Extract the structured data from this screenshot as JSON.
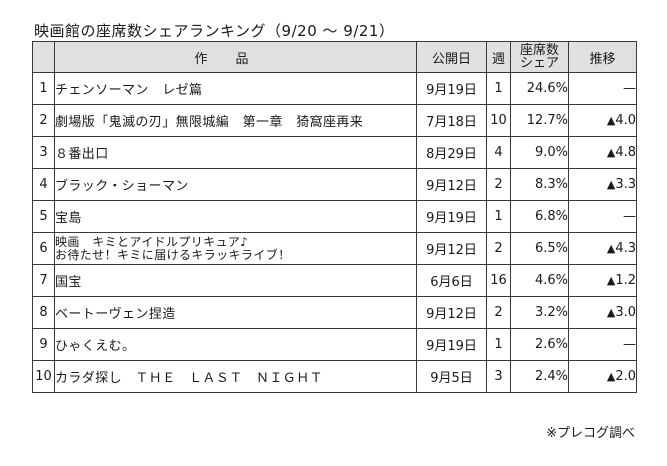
{
  "title": "映画館の座席数シェアランキング（9/20 ～ 9/21）",
  "headers": {
    "rank": "",
    "title": "作品",
    "release": "公開日",
    "weeks": "週",
    "share_line1": "座席数",
    "share_line2": "シェア",
    "trend": "推移"
  },
  "rows": [
    {
      "rank": "1",
      "title": "チェンソーマン　レゼ篇",
      "release": "9月19日",
      "weeks": "1",
      "share": "24.6%",
      "trend_arrow": "",
      "trend_value": "—"
    },
    {
      "rank": "2",
      "title": "劇場版「鬼滅の刃」無限城編　第一章　猗窩座再来",
      "release": "7月18日",
      "weeks": "10",
      "share": "12.7%",
      "trend_arrow": "▲",
      "trend_value": "4.0"
    },
    {
      "rank": "3",
      "title": "８番出口",
      "release": "8月29日",
      "weeks": "4",
      "share": "9.0%",
      "trend_arrow": "▲",
      "trend_value": "4.8"
    },
    {
      "rank": "4",
      "title": "ブラック・ショーマン",
      "release": "9月12日",
      "weeks": "2",
      "share": "8.3%",
      "trend_arrow": "▲",
      "trend_value": "3.3"
    },
    {
      "rank": "5",
      "title": "宝島",
      "release": "9月19日",
      "weeks": "1",
      "share": "6.8%",
      "trend_arrow": "",
      "trend_value": "—"
    },
    {
      "rank": "6",
      "title": "映画　キミとアイドルプリキュア♪",
      "title_line2": "お待たせ！キミに届けるキラッキライブ！",
      "release": "9月12日",
      "weeks": "2",
      "share": "6.5%",
      "trend_arrow": "▲",
      "trend_value": "4.3"
    },
    {
      "rank": "7",
      "title": "国宝",
      "release": "6月6日",
      "weeks": "16",
      "share": "4.6%",
      "trend_arrow": "▲",
      "trend_value": "1.2"
    },
    {
      "rank": "8",
      "title": "ベートーヴェン捏造",
      "release": "9月12日",
      "weeks": "2",
      "share": "3.2%",
      "trend_arrow": "▲",
      "trend_value": "3.0"
    },
    {
      "rank": "9",
      "title": "ひゃくえむ。",
      "release": "9月19日",
      "weeks": "1",
      "share": "2.6%",
      "trend_arrow": "",
      "trend_value": "—"
    },
    {
      "rank": "10",
      "title": "カラダ探し　ＴＨＥ　ＬＡＳＴ　ＮＩＧＨＴ",
      "release": "9月5日",
      "weeks": "3",
      "share": "2.4%",
      "trend_arrow": "▲",
      "trend_value": "2.0"
    }
  ],
  "footnote": "※プレコグ調べ"
}
